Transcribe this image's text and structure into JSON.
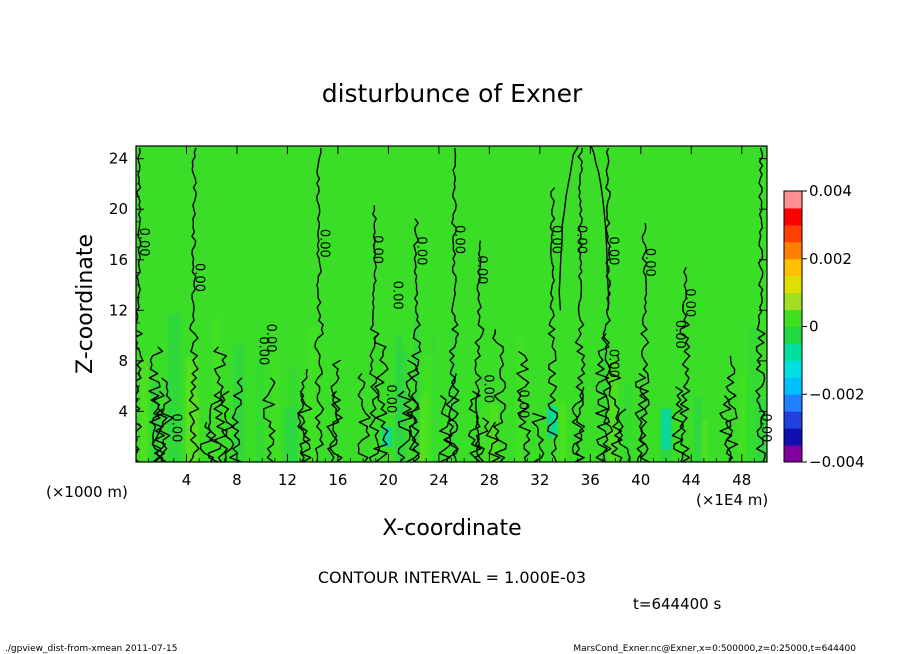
{
  "chart_data": {
    "type": "heatmap",
    "title": "disturbunce of Exner",
    "xlabel": "X-coordinate",
    "ylabel": "Z-coordinate",
    "x_unit_left": "(×1000 m)",
    "x_unit_right": "(×1E4 m)",
    "xlim": [
      0,
      50
    ],
    "ylim": [
      0,
      25
    ],
    "x_ticks": [
      4,
      8,
      12,
      16,
      20,
      24,
      28,
      32,
      36,
      40,
      44,
      48
    ],
    "y_ticks": [
      4,
      8,
      12,
      16,
      20,
      24
    ],
    "colorbar": {
      "range": [
        -0.004,
        0.004
      ],
      "ticks": [
        {
          "value": 0.004,
          "label": "0.004"
        },
        {
          "value": 0.002,
          "label": "0.002"
        },
        {
          "value": 0,
          "label": "0"
        },
        {
          "value": -0.002,
          "label": "−0.002"
        },
        {
          "value": -0.004,
          "label": "−0.004"
        }
      ],
      "colors": [
        "#8000a0",
        "#1010b0",
        "#2040e0",
        "#2080ff",
        "#00c0ff",
        "#00e0e0",
        "#00e0a0",
        "#20d840",
        "#40e020",
        "#a0e020",
        "#e0e000",
        "#ffc000",
        "#ff8000",
        "#ff4000",
        "#ff0000",
        "#ff9090"
      ]
    },
    "contour_labels": [
      {
        "x": 0.3,
        "z": 17.4,
        "text": "0.00"
      },
      {
        "x": 4.7,
        "z": 14.6,
        "text": "0.00"
      },
      {
        "x": 2.9,
        "z": 2.7,
        "text": "0.00"
      },
      {
        "x": 9.8,
        "z": 8.8,
        "text": "0.00"
      },
      {
        "x": 10.4,
        "z": 9.8,
        "text": "0.00"
      },
      {
        "x": 14.6,
        "z": 17.3,
        "text": "0.00"
      },
      {
        "x": 18.8,
        "z": 16.8,
        "text": "0.00"
      },
      {
        "x": 20.4,
        "z": 13.2,
        "text": "0.00"
      },
      {
        "x": 22.3,
        "z": 16.7,
        "text": "0.00"
      },
      {
        "x": 19.9,
        "z": 5.0,
        "text": "0.00"
      },
      {
        "x": 25.3,
        "z": 17.6,
        "text": "0.00"
      },
      {
        "x": 27.1,
        "z": 15.2,
        "text": "0.00"
      },
      {
        "x": 27.6,
        "z": 5.8,
        "text": "0.00"
      },
      {
        "x": 30.4,
        "z": 4.6,
        "text": "0.00"
      },
      {
        "x": 33.0,
        "z": 17.6,
        "text": "0.00"
      },
      {
        "x": 35.0,
        "z": 17.6,
        "text": "0.00"
      },
      {
        "x": 37.5,
        "z": 16.7,
        "text": "0.00"
      },
      {
        "x": 40.4,
        "z": 15.8,
        "text": "0.00"
      },
      {
        "x": 37.5,
        "z": 7.8,
        "text": "0.00"
      },
      {
        "x": 43.6,
        "z": 12.6,
        "text": "0.00"
      },
      {
        "x": 42.8,
        "z": 10.1,
        "text": "0.00"
      },
      {
        "x": 49.6,
        "z": 2.7,
        "text": "0.00"
      }
    ]
  },
  "annotations": {
    "contour_interval": "CONTOUR INTERVAL = 1.000E-03",
    "time": "t=644400 s",
    "footer_left": "./gpview_dist-from-xmean  2011-07-15",
    "footer_right": "MarsCond_Exner.nc@Exner,x=0:500000,z=0:25000,t=644400"
  }
}
